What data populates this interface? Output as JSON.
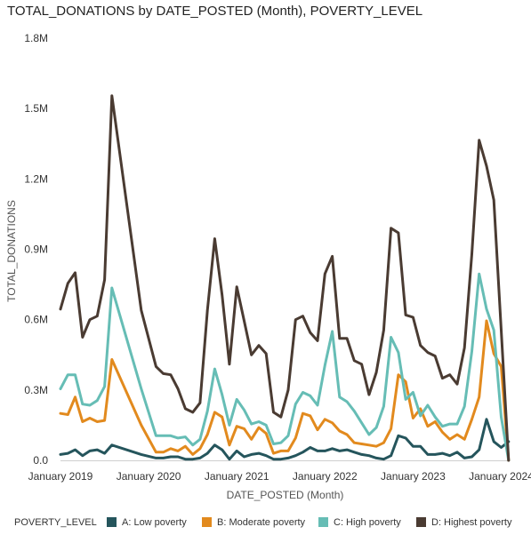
{
  "chart_data": {
    "type": "line",
    "title": "TOTAL_DONATIONS by DATE_POSTED (Month), POVERTY_LEVEL",
    "xlabel": "DATE_POSTED (Month)",
    "ylabel": "TOTAL_DONATIONS",
    "x_range": [
      "2019-01",
      "2024-01"
    ],
    "ylim": [
      0,
      1800000
    ],
    "y_ticks": [
      {
        "value": 0,
        "label": "0.0"
      },
      {
        "value": 300000,
        "label": "0.3M"
      },
      {
        "value": 600000,
        "label": "0.6M"
      },
      {
        "value": 900000,
        "label": "0.9M"
      },
      {
        "value": 1200000,
        "label": "1.2M"
      },
      {
        "value": 1500000,
        "label": "1.5M"
      },
      {
        "value": 1800000,
        "label": "1.8M"
      }
    ],
    "x_ticks": [
      {
        "value": "2019-01",
        "label": "January 2019"
      },
      {
        "value": "2020-01",
        "label": "January 2020"
      },
      {
        "value": "2021-01",
        "label": "January 2021"
      },
      {
        "value": "2022-01",
        "label": "January 2022"
      },
      {
        "value": "2023-01",
        "label": "January 2023"
      },
      {
        "value": "2024-01",
        "label": "January 2024"
      }
    ],
    "legend": {
      "title": "POVERTY_LEVEL",
      "position": "bottom"
    },
    "grid": false,
    "series": [
      {
        "name": "A: Low poverty",
        "color": "#25555c",
        "points": [
          [
            "2019-01",
            25000
          ],
          [
            "2019-02",
            30000
          ],
          [
            "2019-03",
            45000
          ],
          [
            "2019-04",
            20000
          ],
          [
            "2019-05",
            40000
          ],
          [
            "2019-06",
            45000
          ],
          [
            "2019-07",
            30000
          ],
          [
            "2019-08",
            65000
          ],
          [
            "2019-12",
            25000
          ],
          [
            "2020-02",
            10000
          ],
          [
            "2020-03",
            10000
          ],
          [
            "2020-04",
            15000
          ],
          [
            "2020-05",
            15000
          ],
          [
            "2020-06",
            5000
          ],
          [
            "2020-07",
            5000
          ],
          [
            "2020-08",
            10000
          ],
          [
            "2020-09",
            30000
          ],
          [
            "2020-10",
            65000
          ],
          [
            "2020-11",
            45000
          ],
          [
            "2020-12",
            5000
          ],
          [
            "2021-01",
            40000
          ],
          [
            "2021-02",
            15000
          ],
          [
            "2021-03",
            25000
          ],
          [
            "2021-04",
            30000
          ],
          [
            "2021-05",
            20000
          ],
          [
            "2021-06",
            5000
          ],
          [
            "2021-07",
            5000
          ],
          [
            "2021-08",
            10000
          ],
          [
            "2021-09",
            20000
          ],
          [
            "2021-10",
            35000
          ],
          [
            "2021-11",
            55000
          ],
          [
            "2021-12",
            40000
          ],
          [
            "2022-01",
            40000
          ],
          [
            "2022-02",
            50000
          ],
          [
            "2022-03",
            40000
          ],
          [
            "2022-04",
            45000
          ],
          [
            "2022-05",
            35000
          ],
          [
            "2022-06",
            25000
          ],
          [
            "2022-07",
            20000
          ],
          [
            "2022-08",
            10000
          ],
          [
            "2022-09",
            5000
          ],
          [
            "2022-10",
            20000
          ],
          [
            "2022-11",
            105000
          ],
          [
            "2022-12",
            95000
          ],
          [
            "2023-01",
            60000
          ],
          [
            "2023-02",
            60000
          ],
          [
            "2023-03",
            25000
          ],
          [
            "2023-04",
            25000
          ],
          [
            "2023-05",
            30000
          ],
          [
            "2023-06",
            20000
          ],
          [
            "2023-07",
            35000
          ],
          [
            "2023-08",
            10000
          ],
          [
            "2023-09",
            15000
          ],
          [
            "2023-10",
            45000
          ],
          [
            "2023-11",
            175000
          ],
          [
            "2023-12",
            80000
          ],
          [
            "2024-01",
            55000
          ],
          [
            "2024-02",
            80000
          ]
        ]
      },
      {
        "name": "B: Moderate poverty",
        "color": "#e28a1e",
        "points": [
          [
            "2019-01",
            200000
          ],
          [
            "2019-02",
            195000
          ],
          [
            "2019-03",
            270000
          ],
          [
            "2019-04",
            165000
          ],
          [
            "2019-05",
            180000
          ],
          [
            "2019-06",
            165000
          ],
          [
            "2019-07",
            170000
          ],
          [
            "2019-08",
            430000
          ],
          [
            "2019-12",
            150000
          ],
          [
            "2020-02",
            35000
          ],
          [
            "2020-03",
            35000
          ],
          [
            "2020-04",
            50000
          ],
          [
            "2020-05",
            40000
          ],
          [
            "2020-06",
            60000
          ],
          [
            "2020-07",
            25000
          ],
          [
            "2020-08",
            50000
          ],
          [
            "2020-09",
            110000
          ],
          [
            "2020-10",
            205000
          ],
          [
            "2020-11",
            185000
          ],
          [
            "2020-12",
            65000
          ],
          [
            "2021-01",
            145000
          ],
          [
            "2021-02",
            135000
          ],
          [
            "2021-03",
            90000
          ],
          [
            "2021-04",
            140000
          ],
          [
            "2021-05",
            115000
          ],
          [
            "2021-06",
            30000
          ],
          [
            "2021-07",
            40000
          ],
          [
            "2021-08",
            40000
          ],
          [
            "2021-09",
            95000
          ],
          [
            "2021-10",
            200000
          ],
          [
            "2021-11",
            190000
          ],
          [
            "2021-12",
            130000
          ],
          [
            "2022-01",
            175000
          ],
          [
            "2022-02",
            160000
          ],
          [
            "2022-03",
            125000
          ],
          [
            "2022-04",
            110000
          ],
          [
            "2022-05",
            75000
          ],
          [
            "2022-06",
            70000
          ],
          [
            "2022-07",
            65000
          ],
          [
            "2022-08",
            60000
          ],
          [
            "2022-09",
            75000
          ],
          [
            "2022-10",
            135000
          ],
          [
            "2022-11",
            365000
          ],
          [
            "2022-12",
            335000
          ],
          [
            "2023-01",
            180000
          ],
          [
            "2023-02",
            220000
          ],
          [
            "2023-03",
            145000
          ],
          [
            "2023-04",
            165000
          ],
          [
            "2023-05",
            120000
          ],
          [
            "2023-06",
            90000
          ],
          [
            "2023-07",
            110000
          ],
          [
            "2023-08",
            90000
          ],
          [
            "2023-09",
            175000
          ],
          [
            "2023-10",
            270000
          ],
          [
            "2023-11",
            595000
          ],
          [
            "2023-12",
            455000
          ],
          [
            "2024-01",
            400000
          ],
          [
            "2024-02",
            0
          ]
        ]
      },
      {
        "name": "C: High poverty",
        "color": "#66bdb5",
        "points": [
          [
            "2019-01",
            305000
          ],
          [
            "2019-02",
            365000
          ],
          [
            "2019-03",
            365000
          ],
          [
            "2019-04",
            240000
          ],
          [
            "2019-05",
            235000
          ],
          [
            "2019-06",
            255000
          ],
          [
            "2019-07",
            315000
          ],
          [
            "2019-08",
            735000
          ],
          [
            "2019-12",
            305000
          ],
          [
            "2020-02",
            105000
          ],
          [
            "2020-03",
            105000
          ],
          [
            "2020-04",
            105000
          ],
          [
            "2020-05",
            95000
          ],
          [
            "2020-06",
            100000
          ],
          [
            "2020-07",
            65000
          ],
          [
            "2020-08",
            90000
          ],
          [
            "2020-09",
            210000
          ],
          [
            "2020-10",
            390000
          ],
          [
            "2020-11",
            280000
          ],
          [
            "2020-12",
            150000
          ],
          [
            "2021-01",
            260000
          ],
          [
            "2021-02",
            215000
          ],
          [
            "2021-03",
            155000
          ],
          [
            "2021-04",
            165000
          ],
          [
            "2021-05",
            150000
          ],
          [
            "2021-06",
            70000
          ],
          [
            "2021-07",
            75000
          ],
          [
            "2021-08",
            105000
          ],
          [
            "2021-09",
            240000
          ],
          [
            "2021-10",
            290000
          ],
          [
            "2021-11",
            275000
          ],
          [
            "2021-12",
            235000
          ],
          [
            "2022-01",
            405000
          ],
          [
            "2022-02",
            550000
          ],
          [
            "2022-03",
            270000
          ],
          [
            "2022-04",
            250000
          ],
          [
            "2022-05",
            210000
          ],
          [
            "2022-06",
            160000
          ],
          [
            "2022-07",
            110000
          ],
          [
            "2022-08",
            140000
          ],
          [
            "2022-09",
            230000
          ],
          [
            "2022-10",
            525000
          ],
          [
            "2022-11",
            460000
          ],
          [
            "2022-12",
            260000
          ],
          [
            "2023-01",
            290000
          ],
          [
            "2023-02",
            190000
          ],
          [
            "2023-03",
            235000
          ],
          [
            "2023-04",
            185000
          ],
          [
            "2023-05",
            145000
          ],
          [
            "2023-06",
            155000
          ],
          [
            "2023-07",
            155000
          ],
          [
            "2023-08",
            230000
          ],
          [
            "2023-09",
            465000
          ],
          [
            "2023-10",
            795000
          ],
          [
            "2023-11",
            645000
          ],
          [
            "2023-12",
            555000
          ],
          [
            "2024-01",
            185000
          ],
          [
            "2024-02",
            0
          ]
        ]
      },
      {
        "name": "D: Highest poverty",
        "color": "#4a3b32",
        "points": [
          [
            "2019-01",
            645000
          ],
          [
            "2019-02",
            755000
          ],
          [
            "2019-03",
            800000
          ],
          [
            "2019-04",
            525000
          ],
          [
            "2019-05",
            600000
          ],
          [
            "2019-06",
            615000
          ],
          [
            "2019-07",
            770000
          ],
          [
            "2019-08",
            1555000
          ],
          [
            "2019-12",
            640000
          ],
          [
            "2020-02",
            400000
          ],
          [
            "2020-03",
            370000
          ],
          [
            "2020-04",
            365000
          ],
          [
            "2020-05",
            305000
          ],
          [
            "2020-06",
            220000
          ],
          [
            "2020-07",
            205000
          ],
          [
            "2020-08",
            245000
          ],
          [
            "2020-09",
            640000
          ],
          [
            "2020-10",
            945000
          ],
          [
            "2020-11",
            705000
          ],
          [
            "2020-12",
            410000
          ],
          [
            "2021-01",
            740000
          ],
          [
            "2021-02",
            595000
          ],
          [
            "2021-03",
            450000
          ],
          [
            "2021-04",
            490000
          ],
          [
            "2021-05",
            455000
          ],
          [
            "2021-06",
            205000
          ],
          [
            "2021-07",
            185000
          ],
          [
            "2021-08",
            300000
          ],
          [
            "2021-09",
            600000
          ],
          [
            "2021-10",
            615000
          ],
          [
            "2021-11",
            545000
          ],
          [
            "2021-12",
            510000
          ],
          [
            "2022-01",
            795000
          ],
          [
            "2022-02",
            870000
          ],
          [
            "2022-03",
            520000
          ],
          [
            "2022-04",
            520000
          ],
          [
            "2022-05",
            425000
          ],
          [
            "2022-06",
            410000
          ],
          [
            "2022-07",
            280000
          ],
          [
            "2022-08",
            375000
          ],
          [
            "2022-09",
            555000
          ],
          [
            "2022-10",
            990000
          ],
          [
            "2022-11",
            970000
          ],
          [
            "2022-12",
            620000
          ],
          [
            "2023-01",
            610000
          ],
          [
            "2023-02",
            490000
          ],
          [
            "2023-03",
            460000
          ],
          [
            "2023-04",
            445000
          ],
          [
            "2023-05",
            350000
          ],
          [
            "2023-06",
            365000
          ],
          [
            "2023-07",
            325000
          ],
          [
            "2023-08",
            480000
          ],
          [
            "2023-09",
            880000
          ],
          [
            "2023-10",
            1365000
          ],
          [
            "2023-11",
            1255000
          ],
          [
            "2023-12",
            1110000
          ],
          [
            "2024-01",
            555000
          ],
          [
            "2024-02",
            0
          ]
        ]
      }
    ]
  }
}
